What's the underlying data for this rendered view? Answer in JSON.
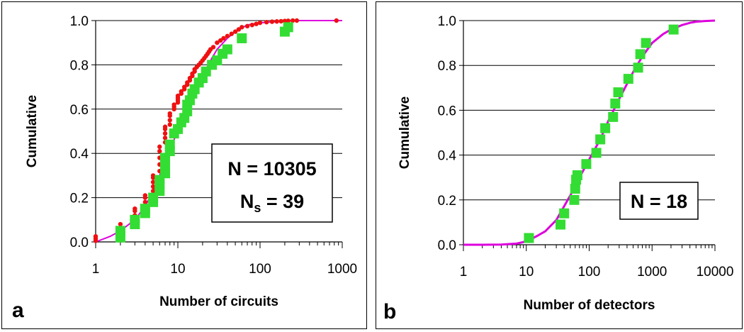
{
  "chart_data": [
    {
      "type": "scatter",
      "panel_label": "a",
      "xlabel": "Number of circuits",
      "ylabel": "Cumulative",
      "xscale": "log",
      "xlim": [
        1,
        1000
      ],
      "ylim": [
        0.0,
        1.0
      ],
      "x_ticks": [
        "1",
        "10",
        "100",
        "1000"
      ],
      "y_ticks": [
        "0.0",
        "0.2",
        "0.4",
        "0.6",
        "0.8",
        "1.0"
      ],
      "grid": "horizontal",
      "annotation": {
        "line1": "N = 10305",
        "line2_main": "N",
        "line2_sub": "s",
        "line2_rest": " = 39"
      },
      "series": [
        {
          "style": "line",
          "color": "#dd00dd",
          "x": [
            1,
            1.5,
            2,
            3,
            4,
            5,
            6,
            7,
            8,
            10,
            12,
            15,
            20,
            25,
            30,
            40,
            50,
            70,
            100,
            150,
            200,
            300,
            500,
            800,
            1000
          ],
          "y": [
            0.0,
            0.025,
            0.05,
            0.1,
            0.16,
            0.23,
            0.3,
            0.36,
            0.42,
            0.5,
            0.57,
            0.65,
            0.75,
            0.82,
            0.87,
            0.92,
            0.95,
            0.98,
            0.99,
            0.995,
            0.998,
            1.0,
            1.0,
            1.0,
            1.0
          ]
        },
        {
          "style": "dots",
          "color": "#ee1111",
          "x": [
            1,
            1,
            1,
            2,
            2,
            2,
            3,
            3,
            3,
            3,
            4,
            4,
            4,
            4,
            5,
            5,
            5,
            5,
            5,
            6,
            6,
            6,
            6,
            6,
            7,
            7,
            7,
            7,
            7,
            8,
            8,
            8,
            8,
            9,
            9,
            9,
            10,
            10,
            10,
            10,
            11,
            11,
            12,
            12,
            13,
            13,
            14,
            14,
            15,
            15,
            16,
            16,
            17,
            18,
            19,
            20,
            21,
            22,
            23,
            24,
            25,
            27,
            30,
            33,
            36,
            40,
            45,
            50,
            55,
            60,
            70,
            80,
            90,
            100,
            120,
            140,
            160,
            180,
            200,
            220,
            250,
            280,
            850
          ],
          "y": [
            0.005,
            0.015,
            0.025,
            0.04,
            0.06,
            0.08,
            0.1,
            0.12,
            0.14,
            0.15,
            0.16,
            0.18,
            0.2,
            0.21,
            0.23,
            0.25,
            0.27,
            0.29,
            0.3,
            0.32,
            0.35,
            0.38,
            0.41,
            0.43,
            0.45,
            0.47,
            0.49,
            0.51,
            0.52,
            0.53,
            0.55,
            0.57,
            0.58,
            0.6,
            0.61,
            0.62,
            0.63,
            0.64,
            0.65,
            0.66,
            0.67,
            0.68,
            0.69,
            0.7,
            0.71,
            0.72,
            0.73,
            0.74,
            0.75,
            0.76,
            0.77,
            0.78,
            0.79,
            0.8,
            0.81,
            0.82,
            0.83,
            0.84,
            0.85,
            0.86,
            0.87,
            0.88,
            0.9,
            0.91,
            0.92,
            0.93,
            0.94,
            0.95,
            0.96,
            0.97,
            0.975,
            0.98,
            0.985,
            0.99,
            0.993,
            0.995,
            0.996,
            0.997,
            0.998,
            0.999,
            1.0,
            1.0,
            1.0
          ]
        },
        {
          "style": "squares",
          "color": "#33dd33",
          "x": [
            2,
            2,
            3,
            3,
            4,
            4,
            5,
            5,
            6,
            6,
            6,
            7,
            7,
            7,
            8,
            8,
            9,
            10,
            11,
            12,
            13,
            13,
            14,
            15,
            16,
            18,
            20,
            22,
            26,
            30,
            35,
            40,
            60,
            200,
            220
          ],
          "y": [
            0.02,
            0.05,
            0.08,
            0.1,
            0.13,
            0.15,
            0.18,
            0.2,
            0.23,
            0.26,
            0.28,
            0.31,
            0.35,
            0.38,
            0.41,
            0.44,
            0.49,
            0.51,
            0.54,
            0.56,
            0.59,
            0.62,
            0.64,
            0.67,
            0.69,
            0.72,
            0.74,
            0.77,
            0.8,
            0.82,
            0.85,
            0.87,
            0.92,
            0.95,
            0.97
          ]
        }
      ]
    },
    {
      "type": "scatter",
      "panel_label": "b",
      "xlabel": "Number of detectors",
      "ylabel": "Cumulative",
      "xscale": "log",
      "xlim": [
        1,
        10000
      ],
      "ylim": [
        0.0,
        1.0
      ],
      "x_ticks": [
        "1",
        "10",
        "100",
        "1000",
        "10000"
      ],
      "y_ticks": [
        "0.0",
        "0.2",
        "0.4",
        "0.6",
        "0.8",
        "1.0"
      ],
      "grid": "horizontal",
      "annotation": {
        "line1": "N = 18"
      },
      "series": [
        {
          "style": "line",
          "color": "#dd00dd",
          "x": [
            1,
            2,
            4,
            7,
            10,
            15,
            20,
            30,
            50,
            70,
            100,
            150,
            200,
            300,
            500,
            700,
            1000,
            1500,
            2000,
            3000,
            4000,
            5000,
            7000,
            10000
          ],
          "y": [
            0.0,
            0.0,
            0.001,
            0.005,
            0.015,
            0.04,
            0.06,
            0.11,
            0.22,
            0.3,
            0.38,
            0.47,
            0.55,
            0.65,
            0.77,
            0.84,
            0.9,
            0.94,
            0.96,
            0.98,
            0.99,
            0.995,
            0.998,
            1.0
          ]
        },
        {
          "style": "squares",
          "color": "#33dd33",
          "x": [
            11,
            35,
            40,
            58,
            60,
            62,
            65,
            90,
            130,
            150,
            180,
            240,
            260,
            290,
            420,
            600,
            650,
            800,
            2200
          ],
          "y": [
            0.03,
            0.09,
            0.14,
            0.2,
            0.25,
            0.29,
            0.31,
            0.36,
            0.41,
            0.47,
            0.52,
            0.57,
            0.63,
            0.68,
            0.74,
            0.79,
            0.85,
            0.9,
            0.96
          ]
        }
      ]
    }
  ]
}
